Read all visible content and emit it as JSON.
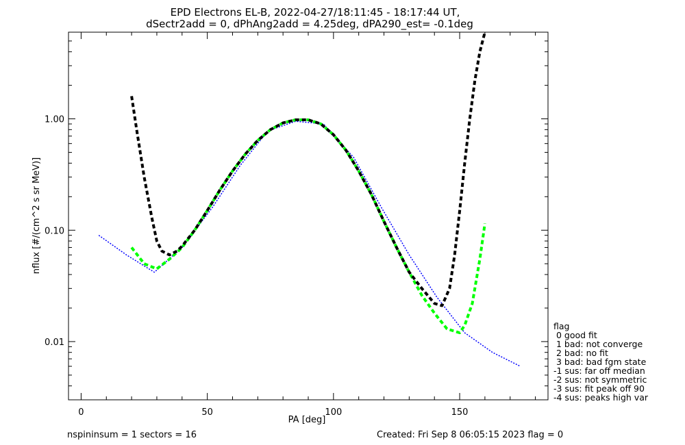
{
  "chart_data": {
    "type": "line",
    "title_lines": [
      "EPD Electrons EL-B, 2022-04-27/18:11:45 - 18:17:44 UT,",
      "dSectr2add = 0, dPhAng2add = 4.25deg, dPA290_est=  -0.1deg"
    ],
    "xlabel": "PA [deg]",
    "ylabel": "nflux [#/(cm^2 s sr MeV)]",
    "xlim": [
      -5,
      185
    ],
    "ylim": [
      0.003,
      6.0
    ],
    "yscale": "log",
    "xticks": [
      0,
      50,
      100,
      150
    ],
    "xtick_labels": [
      "0",
      "50",
      "100",
      "150"
    ],
    "yticks": [
      0.01,
      0.1,
      1.0
    ],
    "ytick_labels": [
      "0.01",
      "0.10",
      "1.00"
    ],
    "series": [
      {
        "color": "#0000ff",
        "style": "dotted",
        "x": [
          7,
          18,
          29,
          40,
          52,
          63,
          74,
          85,
          96,
          108,
          119,
          130,
          141,
          152,
          163,
          174
        ],
        "y": [
          0.09,
          0.06,
          0.042,
          0.07,
          0.16,
          0.38,
          0.78,
          0.95,
          0.9,
          0.45,
          0.16,
          0.06,
          0.025,
          0.012,
          0.008,
          0.006
        ]
      },
      {
        "color": "#00ff00",
        "style": "dashed-thick",
        "x": [
          20,
          25,
          30,
          35,
          40,
          45,
          50,
          55,
          60,
          65,
          70,
          75,
          80,
          85,
          90,
          95,
          100,
          105,
          110,
          115,
          120,
          125,
          130,
          135,
          140,
          145,
          150,
          152,
          155,
          158,
          160
        ],
        "y": [
          0.07,
          0.05,
          0.045,
          0.055,
          0.07,
          0.1,
          0.15,
          0.23,
          0.34,
          0.48,
          0.64,
          0.8,
          0.92,
          0.98,
          0.98,
          0.9,
          0.72,
          0.52,
          0.34,
          0.21,
          0.12,
          0.07,
          0.042,
          0.026,
          0.018,
          0.013,
          0.012,
          0.014,
          0.022,
          0.055,
          0.115
        ]
      },
      {
        "color": "#000000",
        "style": "dashed-thick",
        "x": [
          20,
          22,
          25,
          28,
          30,
          32,
          35,
          38,
          40,
          45,
          50,
          55,
          60,
          65,
          70,
          75,
          80,
          85,
          90,
          95,
          100,
          105,
          110,
          115,
          120,
          125,
          130,
          135,
          140,
          143,
          146,
          148,
          150,
          152,
          154,
          156,
          158,
          160
        ],
        "y": [
          1.6,
          0.8,
          0.3,
          0.13,
          0.08,
          0.065,
          0.06,
          0.065,
          0.072,
          0.1,
          0.15,
          0.23,
          0.34,
          0.48,
          0.64,
          0.8,
          0.92,
          0.98,
          0.98,
          0.9,
          0.72,
          0.52,
          0.34,
          0.21,
          0.12,
          0.07,
          0.042,
          0.03,
          0.022,
          0.021,
          0.03,
          0.06,
          0.15,
          0.4,
          1.0,
          2.2,
          4.0,
          6.0
        ]
      }
    ],
    "legend": {
      "title": "flag",
      "entries": [
        " 0 good fit",
        " 1 bad: not converge",
        " 2 bad: no fit",
        " 3 bad: bad fgm state",
        "-1 sus: far off median",
        "-2 sus: not symmetric",
        "-3 sus: fit peak off 90",
        "-4 sus: peaks high var"
      ],
      "placement": "right"
    },
    "footer": {
      "left": "nspininsum =  1  sectors = 16",
      "right": "Created: Fri Sep  8 06:05:15 2023   flag = 0"
    }
  }
}
